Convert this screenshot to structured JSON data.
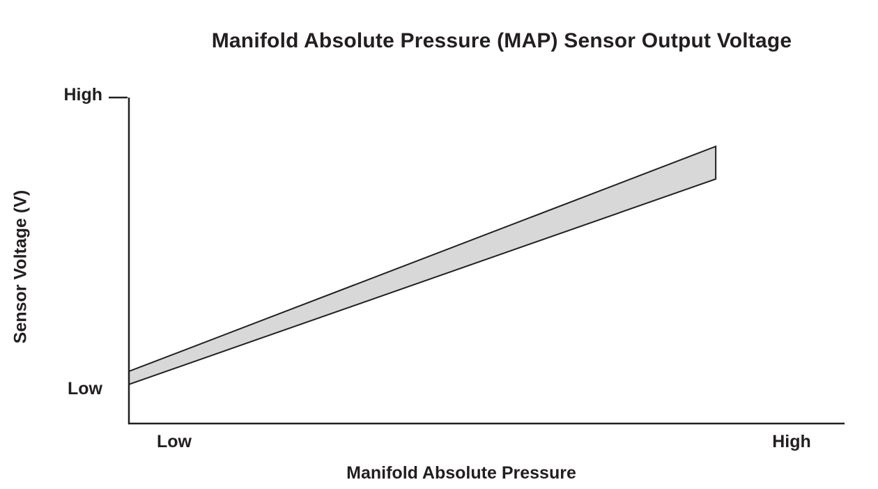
{
  "chart_data": {
    "type": "area",
    "title": "Manifold Absolute Pressure (MAP) Sensor Output Voltage",
    "xlabel": "Manifold Absolute Pressure",
    "ylabel": "Sensor Voltage (V)",
    "x_tick_labels": [
      "Low",
      "High"
    ],
    "y_tick_labels": [
      "Low",
      "High"
    ],
    "xlim": [
      0,
      1
    ],
    "ylim": [
      0,
      1
    ],
    "grid": false,
    "legend_position": "none",
    "band": {
      "name": "sensor-output-tolerance-band",
      "x": [
        0,
        0.82
      ],
      "upper": [
        0.16,
        0.85
      ],
      "lower": [
        0.12,
        0.75
      ],
      "fill_color": "#d8d8d8",
      "stroke_color": "#231f20"
    }
  },
  "colors": {
    "text": "#231f20",
    "axis": "#231f20",
    "band_fill": "#d8d8d8",
    "background": "#ffffff"
  }
}
